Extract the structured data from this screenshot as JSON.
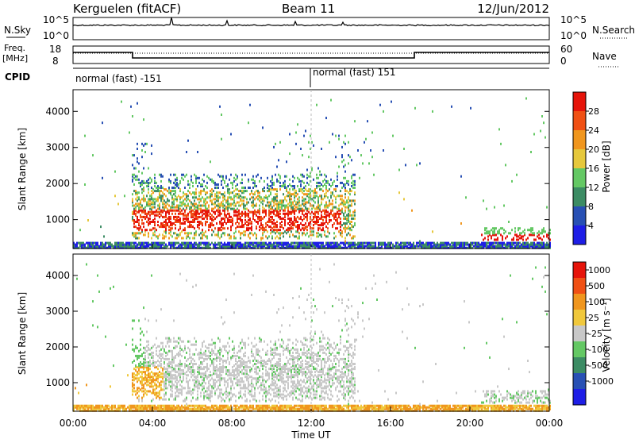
{
  "header": {
    "station": "Kerguelen (fitACF)",
    "beam": "Beam 11",
    "date": "12/Jun/2012"
  },
  "nsky_panel": {
    "left_label": "N.Sky",
    "right_label": "N.Search",
    "tick_top": "10^5",
    "tick_bottom": "10^0",
    "right_tick_top": "10^5",
    "right_tick_bottom": "10^0"
  },
  "freq_panel": {
    "left_label_line1": "Freq.",
    "left_label_line2": "[MHz]",
    "right_label": "Nave",
    "tick_top": "18",
    "tick_bottom": "8",
    "right_tick_top": "60",
    "right_tick_bottom": "0"
  },
  "cpid": {
    "label": "CPID",
    "first": "normal (fast) -151",
    "second": "normal (fast) 151"
  },
  "chart_data": [
    {
      "type": "heatmap",
      "name": "power",
      "ylabel": "Slant Range [km]",
      "yticks": [
        "1000",
        "2000",
        "3000",
        "4000"
      ],
      "yrange": [
        200,
        4600
      ],
      "colorbar_label": "Power [dB]",
      "colorbar_ticks": [
        "4",
        "8",
        "12",
        "16",
        "20",
        "24",
        "28"
      ],
      "colors": [
        "#1e1ee6",
        "#2850b4",
        "#3c8c64",
        "#64c864",
        "#e6c83c",
        "#f0961e",
        "#f05014",
        "#e6140a"
      ]
    },
    {
      "type": "heatmap",
      "name": "velocity",
      "ylabel": "Slant Range [km]",
      "yticks": [
        "1000",
        "2000",
        "3000",
        "4000"
      ],
      "yrange": [
        200,
        4600
      ],
      "colorbar_label": "Velocity [m s⁻¹]",
      "colorbar_ticks": [
        "1000",
        "500",
        "100",
        "25",
        "-25",
        "-100",
        "-500",
        "-1000"
      ],
      "colors": [
        "#1e1ee6",
        "#2850b4",
        "#3c8c64",
        "#64c864",
        "#c8c8c8",
        "#f0c83c",
        "#f0961e",
        "#f05014",
        "#e6140a"
      ]
    }
  ],
  "xaxis": {
    "label": "Time UT",
    "ticks": [
      "00:00",
      "04:00",
      "08:00",
      "12:00",
      "16:00",
      "20:00",
      "00:00"
    ]
  }
}
